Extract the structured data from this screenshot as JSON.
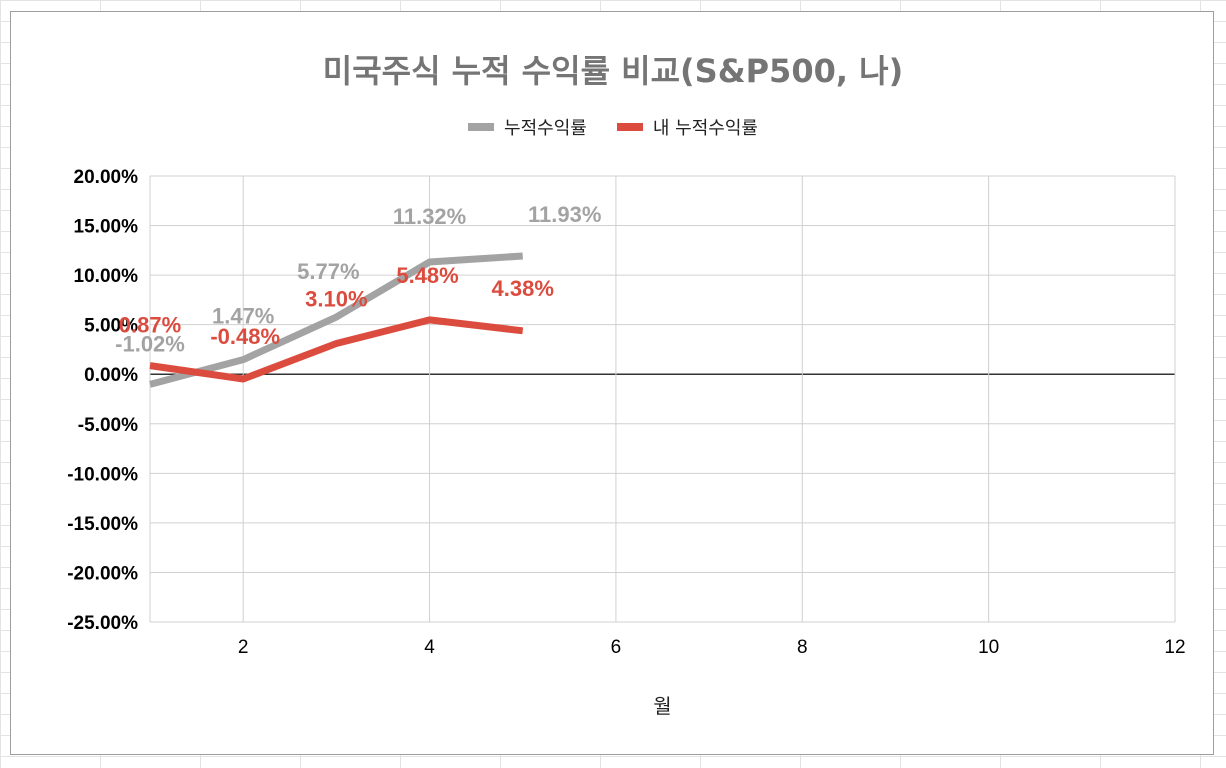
{
  "chart_data": {
    "type": "line",
    "title": "미국주식 누적 수익률 비교(S&P500, 나)",
    "xlabel": "월",
    "ylabel": "",
    "xlim": [
      1,
      12
    ],
    "ylim": [
      -0.25,
      0.2
    ],
    "x_ticks": [
      2,
      4,
      6,
      8,
      10,
      12
    ],
    "y_ticks": [
      0.2,
      0.15,
      0.1,
      0.05,
      0.0,
      -0.05,
      -0.1,
      -0.15,
      -0.2,
      -0.25
    ],
    "y_tick_labels": [
      "20.00%",
      "15.00%",
      "10.00%",
      "5.00%",
      "0.00%",
      "-5.00%",
      "-10.00%",
      "-15.00%",
      "-20.00%",
      "-25.00%"
    ],
    "grid": true,
    "legend_position": "top",
    "series": [
      {
        "name": "누적수익률",
        "color": "#a3a3a3",
        "x": [
          1,
          2,
          3,
          4,
          5
        ],
        "values": [
          -0.0102,
          0.0147,
          0.0577,
          0.1132,
          0.1193
        ],
        "labels": [
          "-1.02%",
          "1.47%",
          "5.77%",
          "11.32%",
          "11.93%"
        ]
      },
      {
        "name": "내 누적수익률",
        "color": "#db4c3f",
        "x": [
          1,
          2,
          3,
          4,
          5
        ],
        "values": [
          0.0087,
          -0.0048,
          0.031,
          0.0548,
          0.0438
        ],
        "labels": [
          "0.87%",
          "-0.48%",
          "3.10%",
          "5.48%",
          "4.38%"
        ]
      }
    ]
  }
}
